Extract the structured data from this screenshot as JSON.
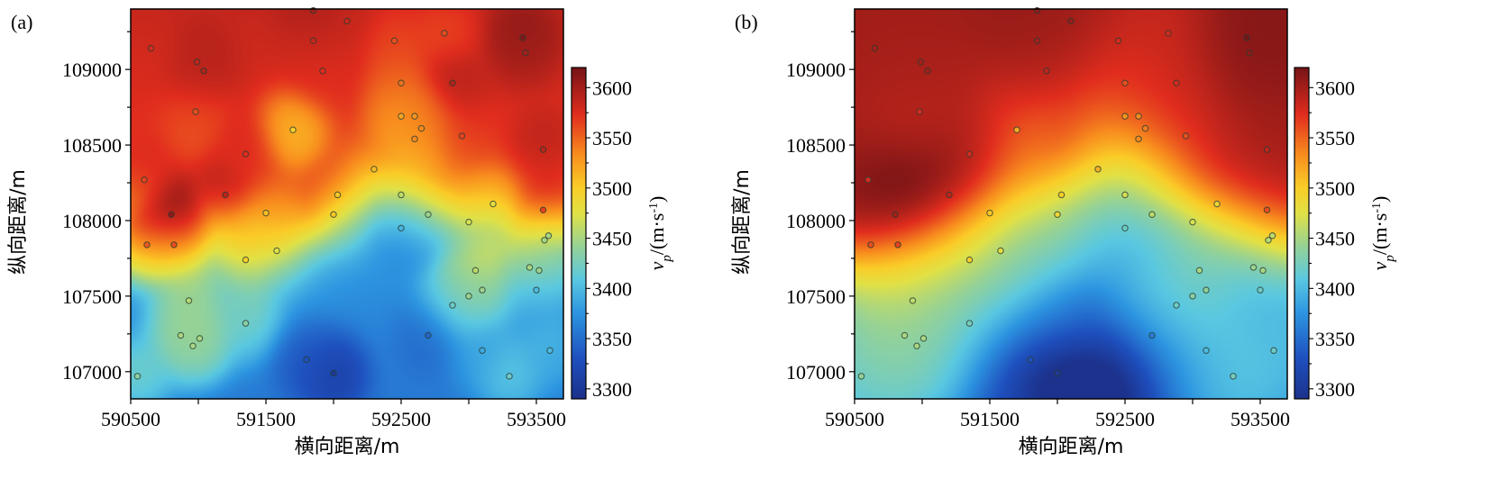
{
  "chart_data": [
    {
      "type": "heatmap",
      "panel_label": "(a)",
      "xlabel": "横向距离/m",
      "ylabel": "纵向距离/m",
      "xlim": [
        590500,
        593700
      ],
      "ylim": [
        106820,
        109400
      ],
      "x_ticks": [
        590500,
        591500,
        592500,
        593500
      ],
      "x_tick_labels": [
        "590500",
        "591500",
        "592500",
        "593500"
      ],
      "y_ticks": [
        107000,
        107500,
        108000,
        108500,
        109000
      ],
      "y_tick_labels": [
        "107000",
        "107500",
        "108000",
        "108500",
        "109000"
      ],
      "colorbar": {
        "title": "v",
        "title_sub": "p",
        "title_unit": "/(m·s",
        "title_sup": "-1",
        "title_close": ")",
        "range": [
          3290,
          3620
        ],
        "ticks": [
          3300,
          3350,
          3400,
          3450,
          3500,
          3550,
          3600
        ],
        "tick_labels": [
          "3300",
          "3350",
          "3400",
          "3450",
          "3500",
          "3550",
          "3600"
        ]
      },
      "background_model": "boundary",
      "stations": [
        {
          "x": 590550,
          "y": 106970,
          "v": 3435
        },
        {
          "x": 590650,
          "y": 109140,
          "v": 3580
        },
        {
          "x": 590600,
          "y": 108270,
          "v": 3565
        },
        {
          "x": 590620,
          "y": 107840,
          "v": 3555
        },
        {
          "x": 590800,
          "y": 108040,
          "v": 3610
        },
        {
          "x": 590820,
          "y": 107840,
          "v": 3560
        },
        {
          "x": 590990,
          "y": 109050,
          "v": 3590
        },
        {
          "x": 591040,
          "y": 108990,
          "v": 3595
        },
        {
          "x": 590980,
          "y": 108720,
          "v": 3560
        },
        {
          "x": 591200,
          "y": 108170,
          "v": 3590
        },
        {
          "x": 591350,
          "y": 108440,
          "v": 3575
        },
        {
          "x": 591350,
          "y": 107740,
          "v": 3500
        },
        {
          "x": 591500,
          "y": 108050,
          "v": 3510
        },
        {
          "x": 591580,
          "y": 107800,
          "v": 3475
        },
        {
          "x": 591350,
          "y": 107320,
          "v": 3435
        },
        {
          "x": 590930,
          "y": 107470,
          "v": 3455
        },
        {
          "x": 590870,
          "y": 107240,
          "v": 3450
        },
        {
          "x": 590960,
          "y": 107170,
          "v": 3450
        },
        {
          "x": 591010,
          "y": 107220,
          "v": 3450
        },
        {
          "x": 591700,
          "y": 108600,
          "v": 3500
        },
        {
          "x": 591800,
          "y": 107080,
          "v": 3330
        },
        {
          "x": 592000,
          "y": 106990,
          "v": 3300
        },
        {
          "x": 591850,
          "y": 109190,
          "v": 3585
        },
        {
          "x": 591920,
          "y": 108990,
          "v": 3575
        },
        {
          "x": 592100,
          "y": 109320,
          "v": 3585
        },
        {
          "x": 591850,
          "y": 109390,
          "v": 3600
        },
        {
          "x": 592000,
          "y": 108040,
          "v": 3505
        },
        {
          "x": 592030,
          "y": 108170,
          "v": 3505
        },
        {
          "x": 592300,
          "y": 108340,
          "v": 3510
        },
        {
          "x": 592450,
          "y": 109190,
          "v": 3560
        },
        {
          "x": 592500,
          "y": 108910,
          "v": 3545
        },
        {
          "x": 592500,
          "y": 108690,
          "v": 3520
        },
        {
          "x": 592600,
          "y": 108690,
          "v": 3530
        },
        {
          "x": 592600,
          "y": 108540,
          "v": 3535
        },
        {
          "x": 592650,
          "y": 108610,
          "v": 3535
        },
        {
          "x": 592500,
          "y": 108170,
          "v": 3460
        },
        {
          "x": 592500,
          "y": 107950,
          "v": 3395
        },
        {
          "x": 592700,
          "y": 108040,
          "v": 3445
        },
        {
          "x": 592700,
          "y": 107240,
          "v": 3345
        },
        {
          "x": 592820,
          "y": 109240,
          "v": 3560
        },
        {
          "x": 592880,
          "y": 108910,
          "v": 3595
        },
        {
          "x": 592950,
          "y": 108560,
          "v": 3565
        },
        {
          "x": 592880,
          "y": 107440,
          "v": 3420
        },
        {
          "x": 593000,
          "y": 107990,
          "v": 3470
        },
        {
          "x": 593050,
          "y": 107670,
          "v": 3460
        },
        {
          "x": 593100,
          "y": 107540,
          "v": 3445
        },
        {
          "x": 593000,
          "y": 107500,
          "v": 3445
        },
        {
          "x": 593100,
          "y": 107140,
          "v": 3390
        },
        {
          "x": 593180,
          "y": 108110,
          "v": 3480
        },
        {
          "x": 593400,
          "y": 109210,
          "v": 3615
        },
        {
          "x": 593420,
          "y": 109110,
          "v": 3600
        },
        {
          "x": 593300,
          "y": 106970,
          "v": 3420
        },
        {
          "x": 593450,
          "y": 107690,
          "v": 3450
        },
        {
          "x": 593500,
          "y": 107540,
          "v": 3400
        },
        {
          "x": 593600,
          "y": 107140,
          "v": 3400
        },
        {
          "x": 593550,
          "y": 108470,
          "v": 3590
        },
        {
          "x": 593550,
          "y": 108070,
          "v": 3565
        },
        {
          "x": 593520,
          "y": 107670,
          "v": 3445
        },
        {
          "x": 593560,
          "y": 107870,
          "v": 3450
        },
        {
          "x": 593590,
          "y": 107900,
          "v": 3450
        }
      ]
    },
    {
      "type": "heatmap",
      "panel_label": "(b)",
      "xlabel": "横向距离/m",
      "ylabel": "纵向距离/m",
      "xlim": [
        590500,
        593700
      ],
      "ylim": [
        106820,
        109400
      ],
      "x_ticks": [
        590500,
        591500,
        592500,
        593500
      ],
      "x_tick_labels": [
        "590500",
        "591500",
        "592500",
        "593500"
      ],
      "y_ticks": [
        107000,
        107500,
        108000,
        108500,
        109000
      ],
      "y_tick_labels": [
        "107000",
        "107500",
        "108000",
        "108500",
        "109000"
      ],
      "colorbar": {
        "title": "v",
        "title_sub": "p",
        "title_unit": "/(m·s",
        "title_sup": "-1",
        "title_close": ")",
        "range": [
          3290,
          3620
        ],
        "ticks": [
          3300,
          3350,
          3400,
          3450,
          3500,
          3550,
          3600
        ],
        "tick_labels": [
          "3300",
          "3350",
          "3400",
          "3450",
          "3500",
          "3550",
          "3600"
        ]
      },
      "background_model": "smooth",
      "stations": [
        {
          "x": 590550,
          "y": 106970,
          "v": 3440
        },
        {
          "x": 590650,
          "y": 109140,
          "v": 3600
        },
        {
          "x": 590600,
          "y": 108270,
          "v": 3580
        },
        {
          "x": 590620,
          "y": 107840,
          "v": 3560
        },
        {
          "x": 590800,
          "y": 108040,
          "v": 3600
        },
        {
          "x": 590820,
          "y": 107840,
          "v": 3565
        },
        {
          "x": 590990,
          "y": 109050,
          "v": 3600
        },
        {
          "x": 591040,
          "y": 108990,
          "v": 3600
        },
        {
          "x": 590980,
          "y": 108720,
          "v": 3580
        },
        {
          "x": 591200,
          "y": 108170,
          "v": 3590
        },
        {
          "x": 591350,
          "y": 108440,
          "v": 3580
        },
        {
          "x": 591350,
          "y": 107740,
          "v": 3500
        },
        {
          "x": 591500,
          "y": 108050,
          "v": 3505
        },
        {
          "x": 591580,
          "y": 107800,
          "v": 3480
        },
        {
          "x": 591350,
          "y": 107320,
          "v": 3425
        },
        {
          "x": 590930,
          "y": 107470,
          "v": 3460
        },
        {
          "x": 590870,
          "y": 107240,
          "v": 3450
        },
        {
          "x": 590960,
          "y": 107170,
          "v": 3450
        },
        {
          "x": 591010,
          "y": 107220,
          "v": 3450
        },
        {
          "x": 591700,
          "y": 108600,
          "v": 3520
        },
        {
          "x": 591800,
          "y": 107080,
          "v": 3330
        },
        {
          "x": 592000,
          "y": 106990,
          "v": 3300
        },
        {
          "x": 591850,
          "y": 109190,
          "v": 3600
        },
        {
          "x": 591920,
          "y": 108990,
          "v": 3590
        },
        {
          "x": 592100,
          "y": 109320,
          "v": 3605
        },
        {
          "x": 591850,
          "y": 109390,
          "v": 3610
        },
        {
          "x": 592000,
          "y": 108040,
          "v": 3490
        },
        {
          "x": 592030,
          "y": 108170,
          "v": 3500
        },
        {
          "x": 592300,
          "y": 108340,
          "v": 3515
        },
        {
          "x": 592450,
          "y": 109190,
          "v": 3580
        },
        {
          "x": 592500,
          "y": 108910,
          "v": 3560
        },
        {
          "x": 592500,
          "y": 108690,
          "v": 3530
        },
        {
          "x": 592600,
          "y": 108690,
          "v": 3535
        },
        {
          "x": 592600,
          "y": 108540,
          "v": 3535
        },
        {
          "x": 592650,
          "y": 108610,
          "v": 3540
        },
        {
          "x": 592500,
          "y": 108170,
          "v": 3470
        },
        {
          "x": 592500,
          "y": 107950,
          "v": 3420
        },
        {
          "x": 592700,
          "y": 108040,
          "v": 3460
        },
        {
          "x": 592700,
          "y": 107240,
          "v": 3360
        },
        {
          "x": 592820,
          "y": 109240,
          "v": 3580
        },
        {
          "x": 592880,
          "y": 108910,
          "v": 3580
        },
        {
          "x": 592950,
          "y": 108560,
          "v": 3560
        },
        {
          "x": 592880,
          "y": 107440,
          "v": 3420
        },
        {
          "x": 593000,
          "y": 107990,
          "v": 3470
        },
        {
          "x": 593050,
          "y": 107670,
          "v": 3450
        },
        {
          "x": 593100,
          "y": 107540,
          "v": 3440
        },
        {
          "x": 593000,
          "y": 107500,
          "v": 3435
        },
        {
          "x": 593100,
          "y": 107140,
          "v": 3400
        },
        {
          "x": 593180,
          "y": 108110,
          "v": 3490
        },
        {
          "x": 593400,
          "y": 109210,
          "v": 3620
        },
        {
          "x": 593420,
          "y": 109110,
          "v": 3610
        },
        {
          "x": 593300,
          "y": 106970,
          "v": 3425
        },
        {
          "x": 593450,
          "y": 107690,
          "v": 3445
        },
        {
          "x": 593500,
          "y": 107540,
          "v": 3420
        },
        {
          "x": 593600,
          "y": 107140,
          "v": 3420
        },
        {
          "x": 593550,
          "y": 108470,
          "v": 3590
        },
        {
          "x": 593550,
          "y": 108070,
          "v": 3560
        },
        {
          "x": 593520,
          "y": 107670,
          "v": 3450
        },
        {
          "x": 593560,
          "y": 107870,
          "v": 3455
        },
        {
          "x": 593590,
          "y": 107900,
          "v": 3460
        }
      ]
    }
  ]
}
